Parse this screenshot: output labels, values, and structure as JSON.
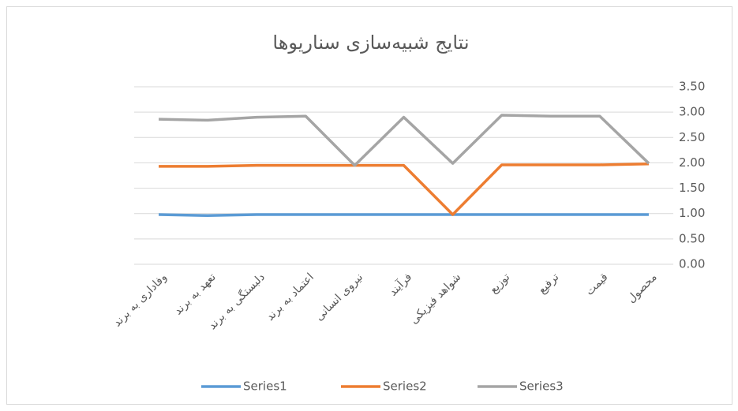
{
  "chart_data": {
    "type": "line",
    "title": "نتایج شبیه‌سازی سناریوها",
    "categories": [
      "وفاداری به برند",
      "تعهد به برند",
      "دلبستگی به برند",
      "اعتماد به برند",
      "نیروی انسانی",
      "فرآیند",
      "شواهد فیزیکی",
      "توزیع",
      "ترفیع",
      "قیمت",
      "محصول"
    ],
    "series": [
      {
        "name": "Series1",
        "color": "#5b9bd5",
        "values": [
          0.98,
          0.96,
          0.98,
          0.98,
          0.98,
          0.98,
          0.98,
          0.98,
          0.98,
          0.98,
          0.98
        ]
      },
      {
        "name": "Series2",
        "color": "#ed7d31",
        "values": [
          1.93,
          1.93,
          1.95,
          1.95,
          1.95,
          1.95,
          0.98,
          1.96,
          1.96,
          1.96,
          1.98
        ]
      },
      {
        "name": "Series3",
        "color": "#a5a5a5",
        "values": [
          2.86,
          2.84,
          2.9,
          2.92,
          1.95,
          2.9,
          1.99,
          2.94,
          2.92,
          2.92,
          1.99
        ]
      }
    ],
    "ylim": [
      0,
      3.5
    ],
    "yticks": [
      {
        "value": 0,
        "label": "0.00"
      },
      {
        "value": 0.5,
        "label": "0.50"
      },
      {
        "value": 1,
        "label": "1.00"
      },
      {
        "value": 1.5,
        "label": "1.50"
      },
      {
        "value": 2,
        "label": "2.00"
      },
      {
        "value": 2.5,
        "label": "2.50"
      },
      {
        "value": 3,
        "label": "3.00"
      },
      {
        "value": 3.5,
        "label": "3.50"
      }
    ],
    "grid": true
  }
}
